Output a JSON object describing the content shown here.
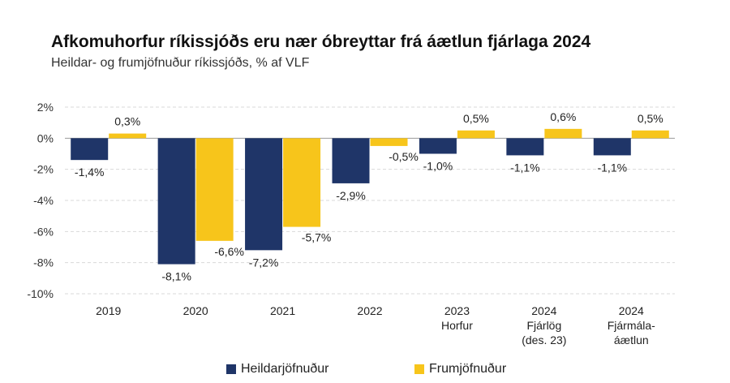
{
  "header": {
    "title": "Afkomuhorfur ríkissjóðs eru nær óbreyttar frá áætlun fjárlaga 2024",
    "subtitle": "Heildar- og frumjöfnuður ríkissjóðs, % af VLF"
  },
  "colors": {
    "series_1": "#1f3568",
    "series_2": "#f7c51b",
    "grid": "#d9d9d9",
    "axis": "#999999"
  },
  "chart_data": {
    "type": "bar",
    "categories": [
      [
        "2019"
      ],
      [
        "2020"
      ],
      [
        "2021"
      ],
      [
        "2022"
      ],
      [
        "2023",
        "Horfur"
      ],
      [
        "2024",
        "Fjárlög",
        "(des. 23)"
      ],
      [
        "2024",
        "Fjármála-",
        "áætlun"
      ]
    ],
    "series": [
      {
        "name": "Heildarjöfnuður",
        "values": [
          -1.4,
          -8.1,
          -7.2,
          -2.9,
          -1.0,
          -1.1,
          -1.1
        ],
        "labels": [
          "-1,4%",
          "-8,1%",
          "-7,2%",
          "-2,9%",
          "-1,0%",
          "-1,1%",
          "-1,1%"
        ]
      },
      {
        "name": "Frumjöfnuður",
        "values": [
          0.3,
          -6.6,
          -5.7,
          -0.5,
          0.5,
          0.6,
          0.5
        ],
        "labels": [
          "0,3%",
          "-6,6%",
          "-5,7%",
          "-0,5%",
          "0,5%",
          "0,6%",
          "0,5%"
        ]
      }
    ],
    "ylim": [
      -10,
      2
    ],
    "yticks": [
      2,
      0,
      -2,
      -4,
      -6,
      -8,
      -10
    ],
    "ytick_labels": [
      "2%",
      "0%",
      "-2%",
      "-4%",
      "-6%",
      "-8%",
      "-10%"
    ],
    "xlabel": "",
    "ylabel": "",
    "grid": true,
    "legend": "bottom-center"
  }
}
